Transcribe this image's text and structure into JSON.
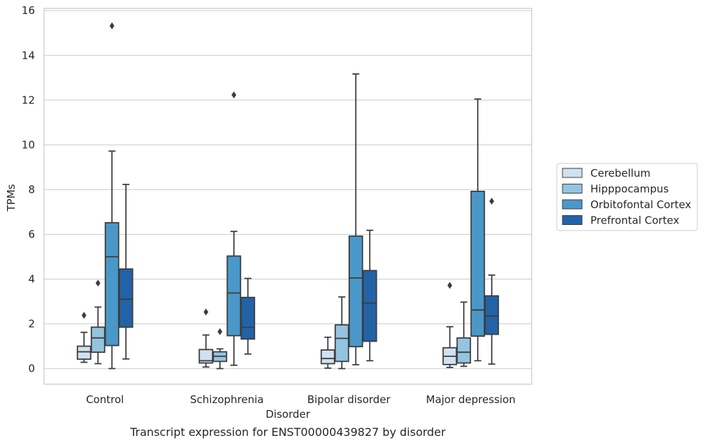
{
  "chart_data": {
    "type": "box",
    "caption": "Transcript expression for ENST00000439827 by disorder",
    "xlabel": "Disorder",
    "ylabel": "TPMs",
    "ylim": [
      -0.7,
      16.1
    ],
    "yticks": [
      0,
      2,
      4,
      6,
      8,
      10,
      12,
      14,
      16
    ],
    "ytick_labels": [
      "0",
      "2",
      "4",
      "6",
      "8",
      "10",
      "12",
      "14",
      "16"
    ],
    "grid": "horizontal",
    "legend_position": "right",
    "categories": [
      "Control",
      "Schizophrenia",
      "Bipolar disorder",
      "Major depression"
    ],
    "series": [
      {
        "name": "Cerebellum",
        "color": "#d0e1f2",
        "boxes": [
          {
            "whislo": 0.28,
            "q1": 0.42,
            "med": 0.75,
            "q3": 1.0,
            "whishi": 1.62,
            "fliers": [
              2.38
            ]
          },
          {
            "whislo": 0.07,
            "q1": 0.25,
            "med": 0.35,
            "q3": 0.85,
            "whishi": 1.5,
            "fliers": [
              2.53
            ]
          },
          {
            "whislo": 0.02,
            "q1": 0.22,
            "med": 0.45,
            "q3": 0.83,
            "whishi": 1.4,
            "fliers": []
          },
          {
            "whislo": 0.05,
            "q1": 0.18,
            "med": 0.55,
            "q3": 0.93,
            "whishi": 1.87,
            "fliers": [
              3.72
            ]
          }
        ]
      },
      {
        "name": "Hipppocampus",
        "color": "#94c4df",
        "boxes": [
          {
            "whislo": 0.22,
            "q1": 0.73,
            "med": 1.37,
            "q3": 1.85,
            "whishi": 2.75,
            "fliers": [
              3.82
            ]
          },
          {
            "whislo": 0.0,
            "q1": 0.32,
            "med": 0.55,
            "q3": 0.75,
            "whishi": 0.88,
            "fliers": [
              1.65
            ]
          },
          {
            "whislo": 0.0,
            "q1": 0.32,
            "med": 1.35,
            "q3": 1.95,
            "whishi": 3.2,
            "fliers": []
          },
          {
            "whislo": 0.1,
            "q1": 0.25,
            "med": 0.73,
            "q3": 1.37,
            "whishi": 2.97,
            "fliers": []
          }
        ]
      },
      {
        "name": "Orbitofontal Cortex",
        "color": "#4a98c9",
        "boxes": [
          {
            "whislo": 0.0,
            "q1": 1.03,
            "med": 5.0,
            "q3": 6.52,
            "whishi": 9.72,
            "fliers": [
              15.32
            ]
          },
          {
            "whislo": 0.15,
            "q1": 1.47,
            "med": 3.38,
            "q3": 5.03,
            "whishi": 6.13,
            "fliers": [
              12.23
            ]
          },
          {
            "whislo": 0.17,
            "q1": 0.98,
            "med": 4.05,
            "q3": 5.92,
            "whishi": 13.17,
            "fliers": []
          },
          {
            "whislo": 0.35,
            "q1": 1.45,
            "med": 2.62,
            "q3": 7.92,
            "whishi": 12.05,
            "fliers": []
          }
        ]
      },
      {
        "name": "Prefrontal Cortex",
        "color": "#2263a8",
        "boxes": [
          {
            "whislo": 0.43,
            "q1": 1.85,
            "med": 3.1,
            "q3": 4.45,
            "whishi": 8.23,
            "fliers": []
          },
          {
            "whislo": 0.65,
            "q1": 1.32,
            "med": 1.85,
            "q3": 3.18,
            "whishi": 4.03,
            "fliers": []
          },
          {
            "whislo": 0.35,
            "q1": 1.22,
            "med": 2.93,
            "q3": 4.38,
            "whishi": 6.18,
            "fliers": []
          },
          {
            "whislo": 0.2,
            "q1": 1.53,
            "med": 2.35,
            "q3": 3.25,
            "whishi": 4.18,
            "fliers": [
              7.48
            ]
          }
        ]
      }
    ]
  }
}
